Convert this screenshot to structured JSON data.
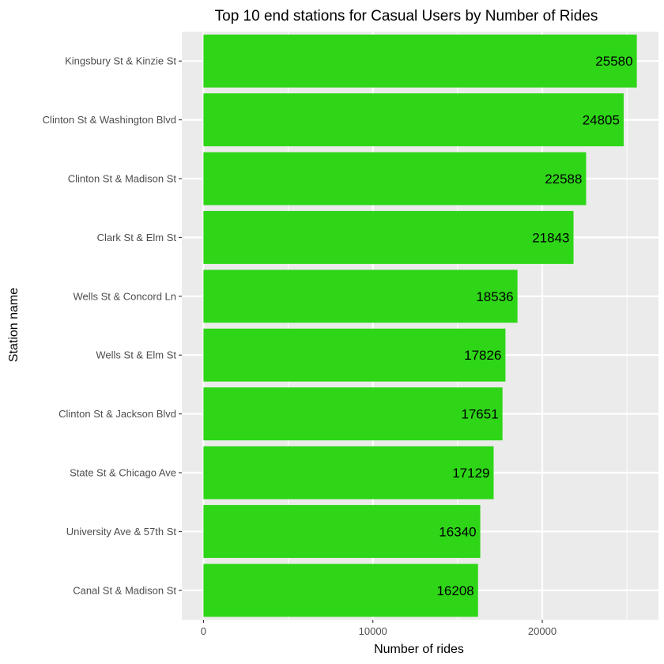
{
  "chart_data": {
    "type": "bar",
    "orientation": "horizontal",
    "title": "Top 10 end stations for Casual Users by Number of Rides",
    "xlabel": "Number of rides",
    "ylabel": "Station name",
    "categories": [
      "Kingsbury St & Kinzie St",
      "Clinton St & Washington Blvd",
      "Clinton St & Madison St",
      "Clark St & Elm St",
      "Wells St & Concord Ln",
      "Wells St & Elm St",
      "Clinton St & Jackson Blvd",
      "State St & Chicago Ave",
      "University Ave & 57th St",
      "Canal St & Madison St"
    ],
    "values": [
      25580,
      24805,
      22588,
      21843,
      18536,
      17826,
      17651,
      17129,
      16340,
      16208
    ],
    "data_labels": [
      "25580",
      "24805",
      "22588",
      "21843",
      "18536",
      "17826",
      "17651",
      "17129",
      "16340",
      "16208"
    ],
    "xticks": [
      "0",
      "10000",
      "20000"
    ],
    "xtick_values": [
      0,
      10000,
      20000
    ],
    "xlim": [
      -1279,
      26859
    ],
    "grid": true,
    "legend": "none",
    "bar_color": "#2ed617",
    "panel_color": "#ebebeb",
    "grid_color": "#ffffff"
  }
}
